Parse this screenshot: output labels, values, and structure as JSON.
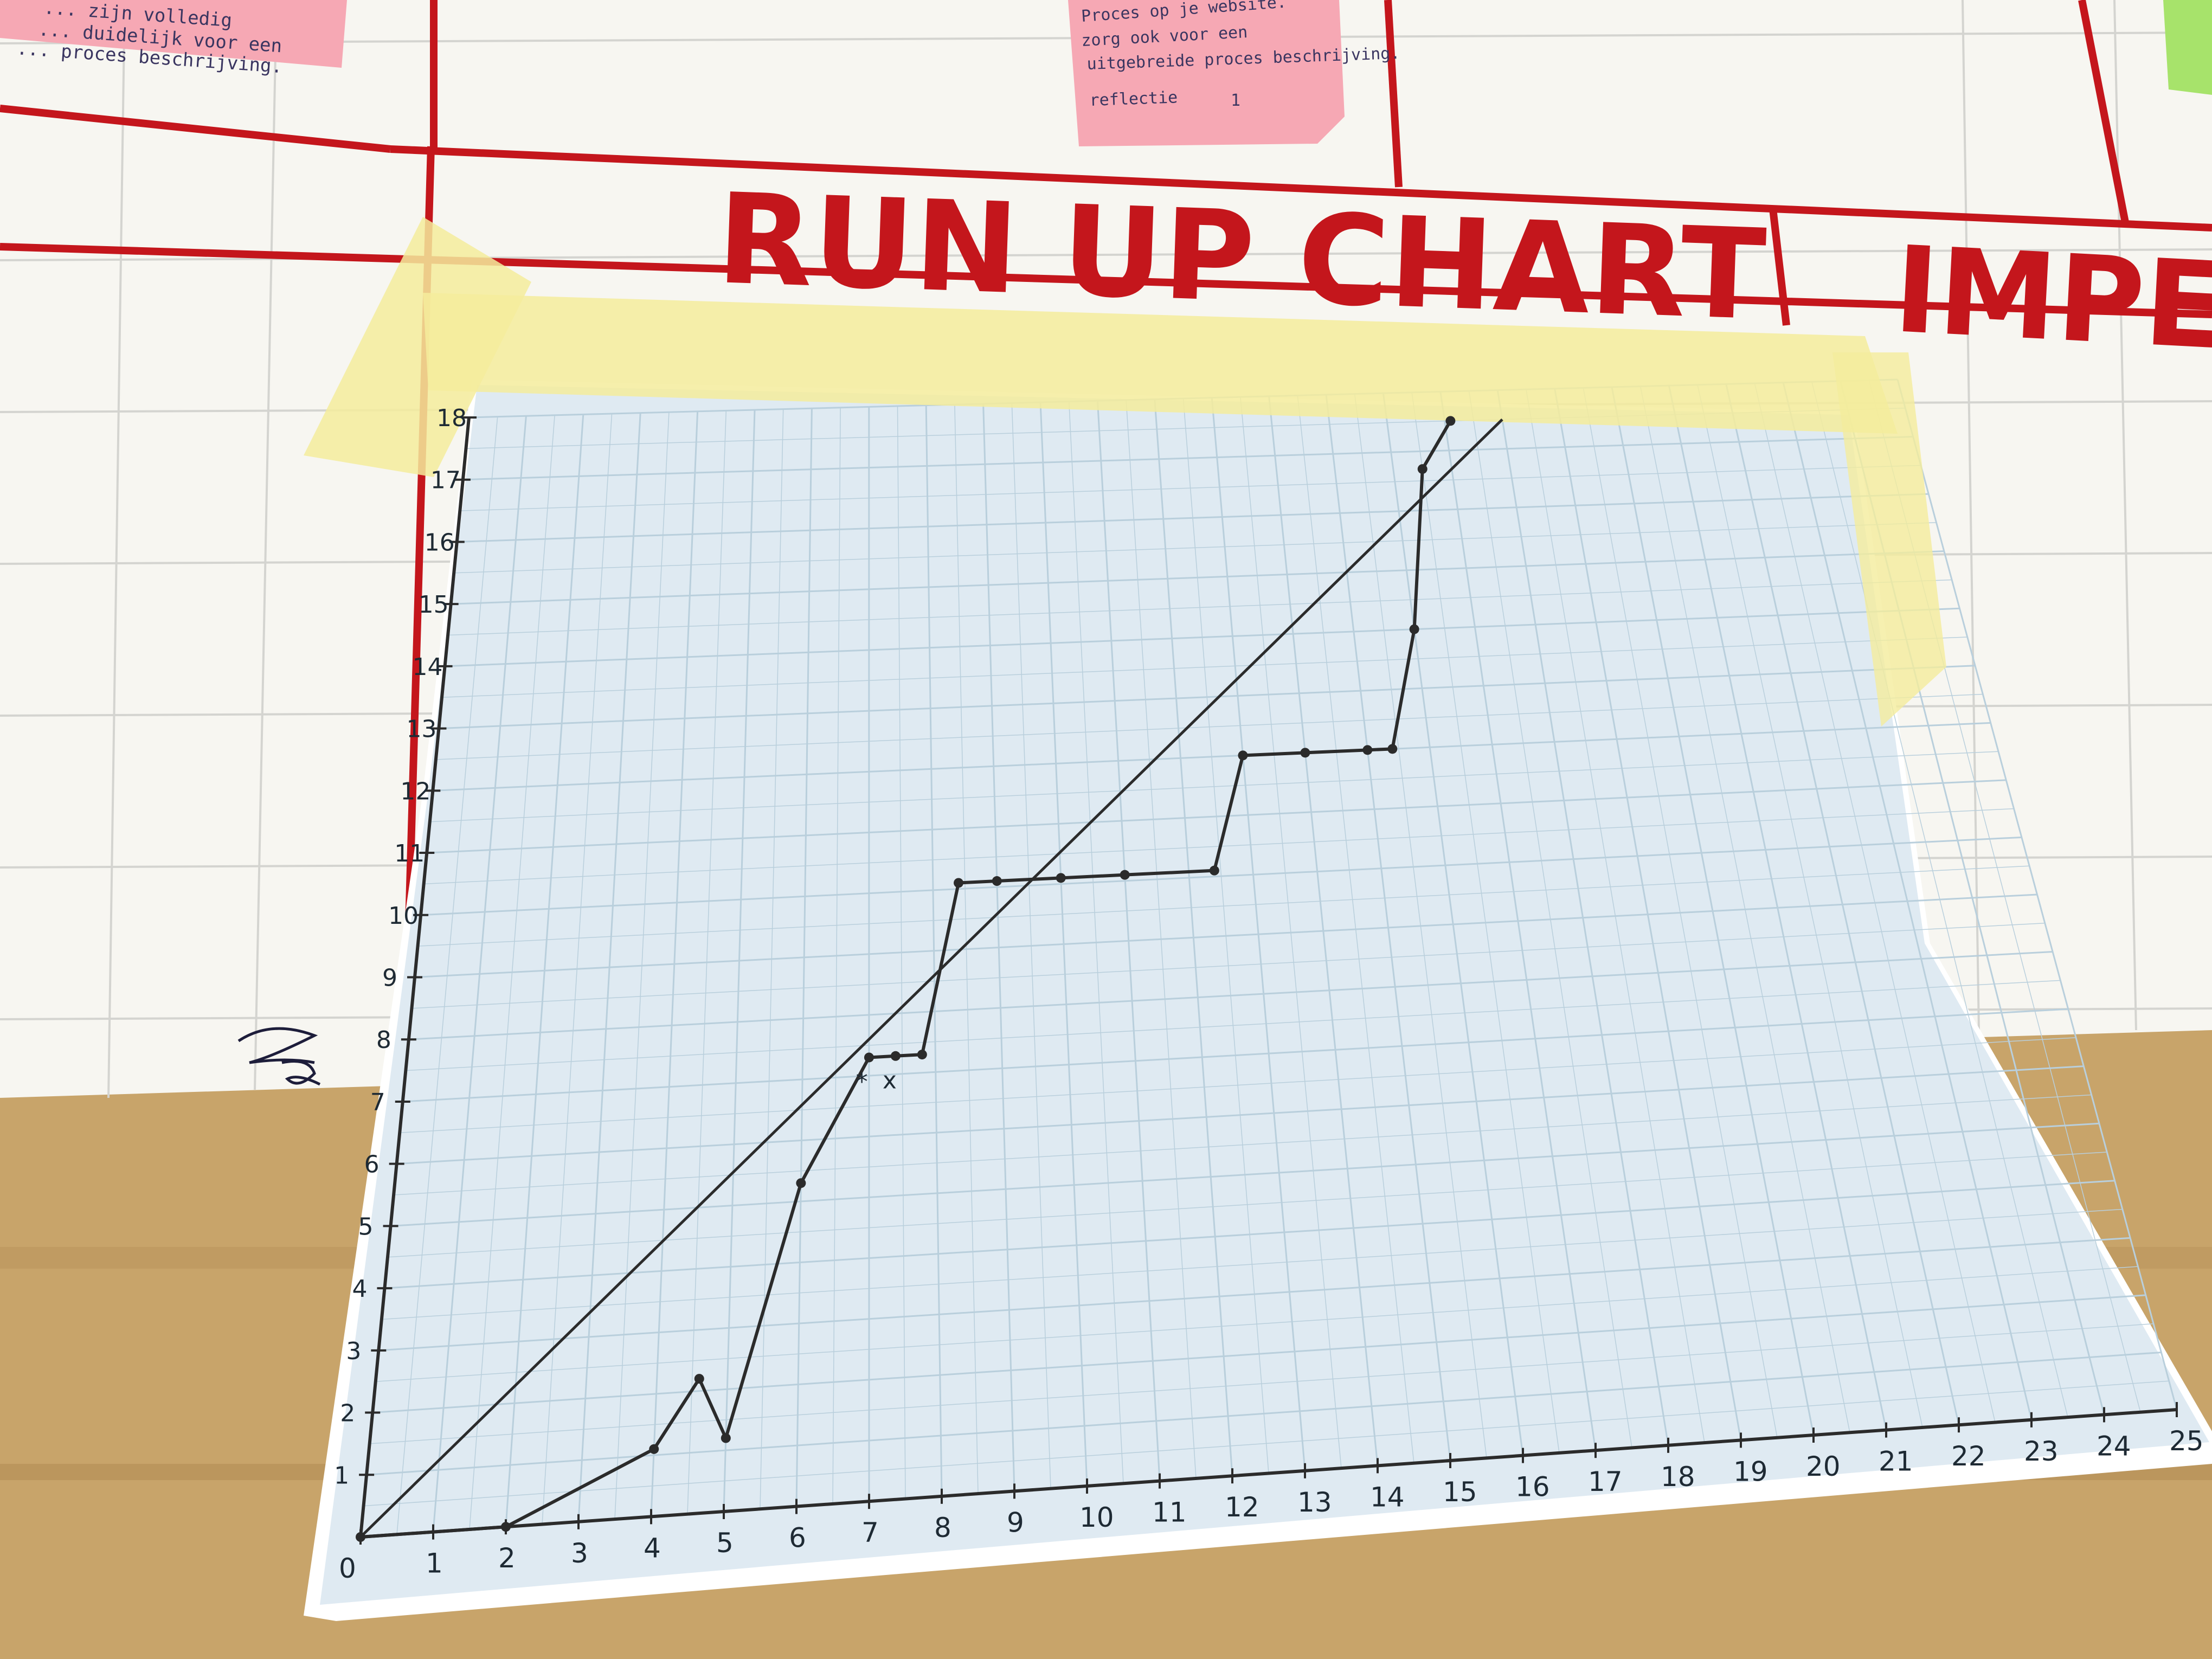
{
  "board": {
    "title": "RUN UP CHART",
    "next_column_title": "IMPEDIN",
    "sticky_left": [
      "... zijn volledig",
      "... duidelijk voor een",
      "... proces beschrijving."
    ],
    "sticky_center": [
      "Proces op je website.",
      "zorg ook voor een",
      "uitgebreide proces beschrijving.",
      "reflectie"
    ],
    "sticky_center_mark": "1",
    "signature": "Zg"
  },
  "colors": {
    "board_red": "#c4161c",
    "graph_paper": "#dfeaf2",
    "tape": "#f4ec9c",
    "ink": "#2b2b2b",
    "sticky_pink": "#f6a8b4",
    "sticky_green": "#a7e36b",
    "table_wood": "#c8a46a"
  },
  "chart_data": {
    "type": "line",
    "title": "RUN UP CHART",
    "xlabel": "",
    "ylabel": "",
    "xlim": [
      0,
      25
    ],
    "ylim": [
      0,
      18
    ],
    "x_ticks": [
      "0",
      "1",
      "2",
      "3",
      "4",
      "5",
      "6",
      "7",
      "8",
      "9",
      "10",
      "11",
      "12",
      "13",
      "14",
      "15",
      "16",
      "17",
      "18",
      "19",
      "20",
      "21",
      "22",
      "23",
      "24",
      "25"
    ],
    "y_ticks": [
      "1",
      "2",
      "3",
      "4",
      "5",
      "6",
      "7",
      "8",
      "9",
      "10",
      "11",
      "12",
      "13",
      "14",
      "15",
      "16",
      "17",
      "18"
    ],
    "grid": true,
    "legend": "none",
    "series": [
      {
        "style": "actual",
        "x": [
          0,
          2,
          4,
          4.6,
          5,
          6,
          7,
          7.4,
          7.8,
          8.4,
          9,
          10,
          11,
          12.4,
          13,
          14,
          15,
          15.4,
          16,
          16.5,
          17.1
        ],
        "y": [
          0,
          0,
          1.1,
          2.2,
          1.2,
          5.3,
          7.3,
          7.3,
          7.3,
          10.1,
          10.1,
          10.1,
          10.1,
          10.1,
          12,
          12,
          12,
          12,
          14,
          16.7,
          17.5
        ]
      },
      {
        "style": "ideal",
        "x": [
          0,
          18
        ],
        "y": [
          0,
          17.5
        ]
      }
    ],
    "annotations": [
      {
        "text": "*",
        "x": 6.9,
        "y": 6.9
      },
      {
        "text": "x",
        "x": 7.3,
        "y": 6.9
      }
    ]
  }
}
